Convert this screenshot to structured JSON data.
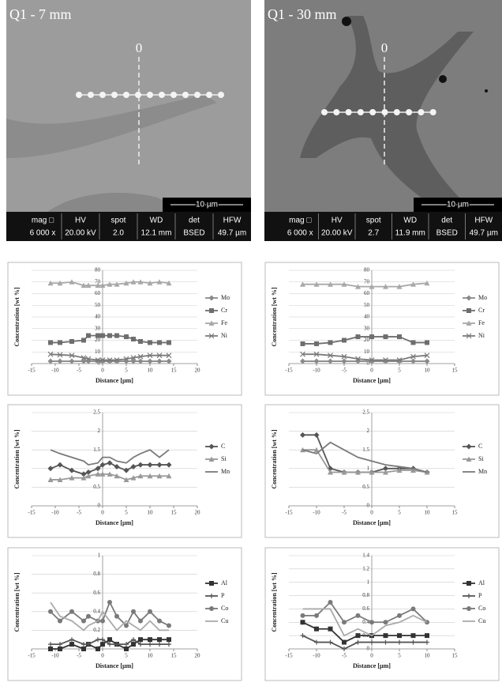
{
  "images": [
    {
      "label": "Q1 - 7 mm",
      "zero_label": "0",
      "scale_bar": "10 µm",
      "info_headers": [
        "mag □",
        "HV",
        "spot",
        "WD",
        "det",
        "HFW"
      ],
      "info_values": [
        "6 000 x",
        "20.00 kV",
        "2.0",
        "12.1 mm",
        "BSED",
        "49.7 µm"
      ]
    },
    {
      "label": "Q1 - 30 mm",
      "zero_label": "0",
      "scale_bar": "10 µm",
      "info_headers": [
        "mag □",
        "HV",
        "spot",
        "WD",
        "det",
        "HFW"
      ],
      "info_values": [
        "6 000 x",
        "20.00 kV",
        "2.7",
        "11.9 mm",
        "BSED",
        "49.7 µm"
      ]
    }
  ],
  "chart_data": [
    {
      "type": "line",
      "xlabel": "Distance [µm]",
      "ylabel": "Concentration  [wt %]",
      "x": [
        -11,
        -9,
        -6.5,
        -4,
        -3,
        -1,
        0,
        1.5,
        3,
        5,
        6.5,
        8,
        10,
        12,
        14
      ],
      "xlim": [
        -15,
        20
      ],
      "xticks": [
        -15,
        -10,
        -5,
        0,
        5,
        10,
        15,
        20
      ],
      "ylim": [
        0,
        80
      ],
      "yticks": [
        0,
        10,
        20,
        30,
        40,
        50,
        60,
        70,
        80
      ],
      "series": [
        {
          "name": "Mo",
          "color": "#8a8a8a",
          "marker": "diamond",
          "values": [
            2,
            2,
            2,
            2,
            2,
            2,
            2,
            2,
            2,
            2,
            2,
            2,
            2,
            2,
            2
          ]
        },
        {
          "name": "Cr",
          "color": "#6e6e6e",
          "marker": "square",
          "values": [
            18,
            18,
            19,
            20,
            24,
            24,
            24,
            24,
            24,
            23,
            21,
            19,
            18,
            18,
            18
          ]
        },
        {
          "name": "Fe",
          "color": "#a8a8a8",
          "marker": "triangle",
          "values": [
            69,
            69,
            70,
            67,
            67,
            67,
            67,
            68,
            68,
            69,
            70,
            70,
            69,
            70,
            69
          ]
        },
        {
          "name": "Ni",
          "color": "#7a7a7a",
          "marker": "x",
          "values": [
            8,
            7.5,
            7,
            5,
            4,
            3,
            3,
            3,
            3,
            4,
            5,
            6,
            7,
            7,
            7
          ]
        }
      ]
    },
    {
      "type": "line",
      "xlabel": "Distance [µm]",
      "ylabel": "Concentration  [wt %]",
      "x": [
        -12.5,
        -10,
        -7.5,
        -5,
        -2.5,
        0,
        2.5,
        5,
        7.5,
        10
      ],
      "xlim": [
        -15,
        15
      ],
      "xticks": [
        -15,
        -10,
        -5,
        0,
        5,
        10,
        15
      ],
      "ylim": [
        0,
        80
      ],
      "yticks": [
        0,
        10,
        20,
        30,
        40,
        50,
        60,
        70,
        80
      ],
      "series": [
        {
          "name": "Mo",
          "color": "#8a8a8a",
          "marker": "diamond",
          "values": [
            2,
            2,
            2,
            2,
            2,
            2,
            2,
            2,
            2,
            2
          ]
        },
        {
          "name": "Cr",
          "color": "#6e6e6e",
          "marker": "square",
          "values": [
            17,
            17,
            18,
            20,
            23,
            23,
            23,
            23,
            18,
            18
          ]
        },
        {
          "name": "Fe",
          "color": "#a8a8a8",
          "marker": "triangle",
          "values": [
            68,
            68,
            68,
            68,
            66,
            66,
            66,
            66,
            68,
            69
          ]
        },
        {
          "name": "Ni",
          "color": "#7a7a7a",
          "marker": "x",
          "values": [
            8,
            8,
            7,
            6,
            4,
            3,
            3,
            3,
            6,
            7
          ]
        }
      ]
    },
    {
      "type": "line",
      "xlabel": "Distance [µm]",
      "ylabel": "Concentration [wt %]",
      "x": [
        -11,
        -9,
        -6.5,
        -4,
        -3,
        -1,
        0,
        1.5,
        3,
        5,
        6.5,
        8,
        10,
        12,
        14
      ],
      "xlim": [
        -15,
        20
      ],
      "xticks": [
        -15,
        -10,
        -5,
        0,
        5,
        10,
        15,
        20
      ],
      "ylim": [
        0,
        2.5
      ],
      "yticks": [
        0,
        0.5,
        1,
        1.5,
        2,
        2.5
      ],
      "series": [
        {
          "name": "C",
          "color": "#555555",
          "marker": "diamond",
          "values": [
            1.0,
            1.1,
            0.95,
            0.85,
            0.9,
            1.0,
            1.1,
            1.15,
            1.05,
            0.95,
            1.05,
            1.1,
            1.1,
            1.1,
            1.1
          ]
        },
        {
          "name": "Si",
          "color": "#999999",
          "marker": "triangle",
          "values": [
            0.7,
            0.7,
            0.75,
            0.75,
            0.8,
            0.85,
            0.85,
            0.85,
            0.8,
            0.7,
            0.75,
            0.8,
            0.8,
            0.8,
            0.8
          ]
        },
        {
          "name": "Mn",
          "color": "#7a7a7a",
          "marker": "none",
          "values": [
            1.5,
            1.4,
            1.3,
            1.2,
            1.1,
            1.15,
            1.3,
            1.3,
            1.2,
            1.15,
            1.3,
            1.4,
            1.5,
            1.3,
            1.5
          ]
        }
      ]
    },
    {
      "type": "line",
      "xlabel": "Distance [µm]",
      "ylabel": "Concentration [wt %]",
      "x": [
        -12.5,
        -10,
        -7.5,
        -5,
        -2.5,
        0,
        2.5,
        5,
        7.5,
        10
      ],
      "xlim": [
        -15,
        15
      ],
      "xticks": [
        -15,
        -10,
        -5,
        0,
        5,
        10,
        15
      ],
      "ylim": [
        0,
        2.5
      ],
      "yticks": [
        0,
        0.5,
        1,
        1.5,
        2,
        2.5
      ],
      "series": [
        {
          "name": "C",
          "color": "#555555",
          "marker": "diamond",
          "values": [
            1.9,
            1.9,
            1.0,
            0.9,
            0.9,
            0.9,
            1.0,
            1.0,
            1.0,
            0.9
          ]
        },
        {
          "name": "Si",
          "color": "#999999",
          "marker": "triangle",
          "values": [
            1.5,
            1.5,
            0.9,
            0.9,
            0.9,
            0.9,
            0.9,
            0.95,
            0.95,
            0.9
          ]
        },
        {
          "name": "Mn",
          "color": "#7a7a7a",
          "marker": "none",
          "values": [
            1.5,
            1.4,
            1.7,
            1.5,
            1.3,
            1.2,
            1.1,
            1.05,
            1.0,
            0.9
          ]
        }
      ]
    },
    {
      "type": "line",
      "xlabel": "Distance [µm]",
      "ylabel": "Concentration [wt %]",
      "x": [
        -11,
        -9,
        -6.5,
        -4,
        -3,
        -1,
        0,
        1.5,
        3,
        5,
        6.5,
        8,
        10,
        12,
        14
      ],
      "xlim": [
        -15,
        20
      ],
      "xticks": [
        -15,
        -10,
        -5,
        0,
        5,
        10,
        15,
        20
      ],
      "ylim": [
        0,
        1
      ],
      "yticks": [
        0,
        0.2,
        0.4,
        0.6,
        0.8,
        1
      ],
      "series": [
        {
          "name": "Al",
          "color": "#333333",
          "marker": "square",
          "values": [
            0,
            0,
            0.05,
            0,
            0.05,
            0,
            0.05,
            0.1,
            0.05,
            0,
            0.05,
            0.1,
            0.1,
            0.1,
            0.1
          ]
        },
        {
          "name": "P",
          "color": "#555555",
          "marker": "plus",
          "values": [
            0.05,
            0.05,
            0.1,
            0.05,
            0.05,
            0.1,
            0.1,
            0.05,
            0.05,
            0.05,
            0.1,
            0.05,
            0.05,
            0.05,
            0.05
          ]
        },
        {
          "name": "Co",
          "color": "#7a7a7a",
          "marker": "circle",
          "values": [
            0.4,
            0.3,
            0.4,
            0.3,
            0.35,
            0.3,
            0.3,
            0.5,
            0.35,
            0.25,
            0.4,
            0.3,
            0.4,
            0.3,
            0.25
          ]
        },
        {
          "name": "Cu",
          "color": "#aaaaaa",
          "marker": "none",
          "values": [
            0.5,
            0.35,
            0.3,
            0.2,
            0.25,
            0.3,
            0.4,
            0.3,
            0.2,
            0.3,
            0.25,
            0.2,
            0.3,
            0.2,
            0.2
          ]
        }
      ]
    },
    {
      "type": "line",
      "xlabel": "Distance [µm]",
      "ylabel": "Concentration [wt %]",
      "x": [
        -12.5,
        -10,
        -7.5,
        -5,
        -2.5,
        0,
        2.5,
        5,
        7.5,
        10
      ],
      "xlim": [
        -15,
        15
      ],
      "xticks": [
        -15,
        -10,
        -5,
        0,
        5,
        10,
        15
      ],
      "ylim": [
        0,
        1.4
      ],
      "yticks": [
        0,
        0.2,
        0.4,
        0.6,
        0.8,
        1,
        1.2,
        1.4
      ],
      "series": [
        {
          "name": "Al",
          "color": "#333333",
          "marker": "square",
          "values": [
            0.4,
            0.3,
            0.3,
            0.1,
            0.2,
            0.2,
            0.2,
            0.2,
            0.2,
            0.2
          ]
        },
        {
          "name": "P",
          "color": "#555555",
          "marker": "plus",
          "values": [
            0.2,
            0.1,
            0.1,
            0,
            0.1,
            0.1,
            0.1,
            0.1,
            0.1,
            0.1
          ]
        },
        {
          "name": "Co",
          "color": "#7a7a7a",
          "marker": "circle",
          "values": [
            0.5,
            0.5,
            0.7,
            0.4,
            0.5,
            0.4,
            0.4,
            0.5,
            0.6,
            0.4
          ]
        },
        {
          "name": "Cu",
          "color": "#aaaaaa",
          "marker": "none",
          "values": [
            0.6,
            0.6,
            0.6,
            0.2,
            0.3,
            0.2,
            0.35,
            0.4,
            0.5,
            0.4
          ]
        }
      ]
    }
  ]
}
